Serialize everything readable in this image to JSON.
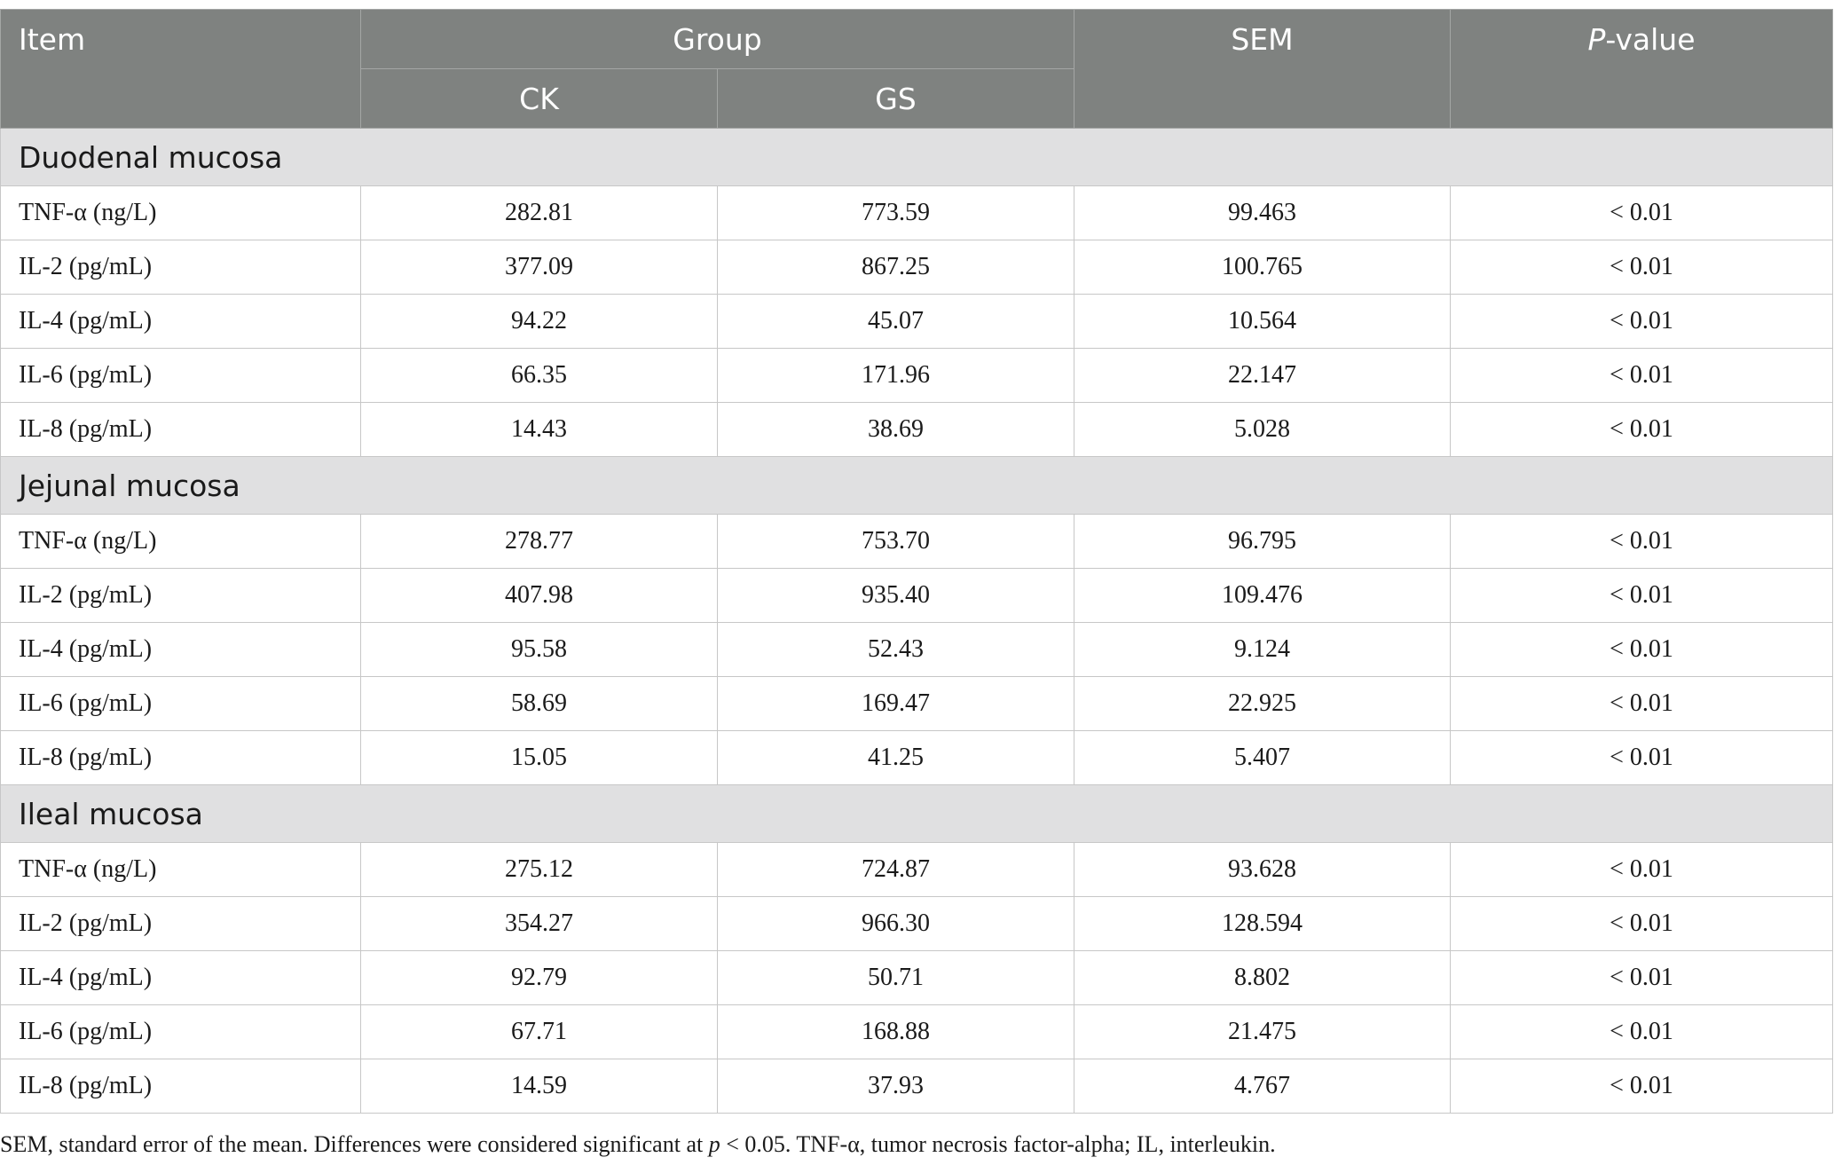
{
  "header": {
    "item": "Item",
    "group": "Group",
    "ck": "CK",
    "gs": "GS",
    "sem": "SEM",
    "p_italic": "P",
    "p_rest": "-value"
  },
  "sections": [
    {
      "title": "Duodenal mucosa",
      "rows": [
        {
          "item": "TNF-α (ng/L)",
          "ck": "282.81",
          "gs": "773.59",
          "sem": "99.463",
          "p": "< 0.01"
        },
        {
          "item": "IL-2 (pg/mL)",
          "ck": "377.09",
          "gs": "867.25",
          "sem": "100.765",
          "p": "< 0.01"
        },
        {
          "item": "IL-4 (pg/mL)",
          "ck": "94.22",
          "gs": "45.07",
          "sem": "10.564",
          "p": "< 0.01"
        },
        {
          "item": "IL-6 (pg/mL)",
          "ck": "66.35",
          "gs": "171.96",
          "sem": "22.147",
          "p": "< 0.01"
        },
        {
          "item": "IL-8 (pg/mL)",
          "ck": "14.43",
          "gs": "38.69",
          "sem": "5.028",
          "p": "< 0.01"
        }
      ]
    },
    {
      "title": "Jejunal mucosa",
      "rows": [
        {
          "item": "TNF-α (ng/L)",
          "ck": "278.77",
          "gs": "753.70",
          "sem": "96.795",
          "p": "< 0.01"
        },
        {
          "item": "IL-2 (pg/mL)",
          "ck": "407.98",
          "gs": "935.40",
          "sem": "109.476",
          "p": "< 0.01"
        },
        {
          "item": "IL-4 (pg/mL)",
          "ck": "95.58",
          "gs": "52.43",
          "sem": "9.124",
          "p": "< 0.01"
        },
        {
          "item": "IL-6 (pg/mL)",
          "ck": "58.69",
          "gs": "169.47",
          "sem": "22.925",
          "p": "< 0.01"
        },
        {
          "item": "IL-8 (pg/mL)",
          "ck": "15.05",
          "gs": "41.25",
          "sem": "5.407",
          "p": "< 0.01"
        }
      ]
    },
    {
      "title": "Ileal mucosa",
      "rows": [
        {
          "item": "TNF-α (ng/L)",
          "ck": "275.12",
          "gs": "724.87",
          "sem": "93.628",
          "p": "< 0.01"
        },
        {
          "item": "IL-2 (pg/mL)",
          "ck": "354.27",
          "gs": "966.30",
          "sem": "128.594",
          "p": "< 0.01"
        },
        {
          "item": "IL-4 (pg/mL)",
          "ck": "92.79",
          "gs": "50.71",
          "sem": "8.802",
          "p": "< 0.01"
        },
        {
          "item": "IL-6 (pg/mL)",
          "ck": "67.71",
          "gs": "168.88",
          "sem": "21.475",
          "p": "< 0.01"
        },
        {
          "item": "IL-8 (pg/mL)",
          "ck": "14.59",
          "gs": "37.93",
          "sem": "4.767",
          "p": "< 0.01"
        }
      ]
    }
  ],
  "footnote": {
    "part1": "SEM, standard error of the mean. Differences were considered significant at ",
    "p_italic": "p",
    "part2": " < 0.05. TNF-α, tumor necrosis factor-alpha; IL, interleukin."
  }
}
